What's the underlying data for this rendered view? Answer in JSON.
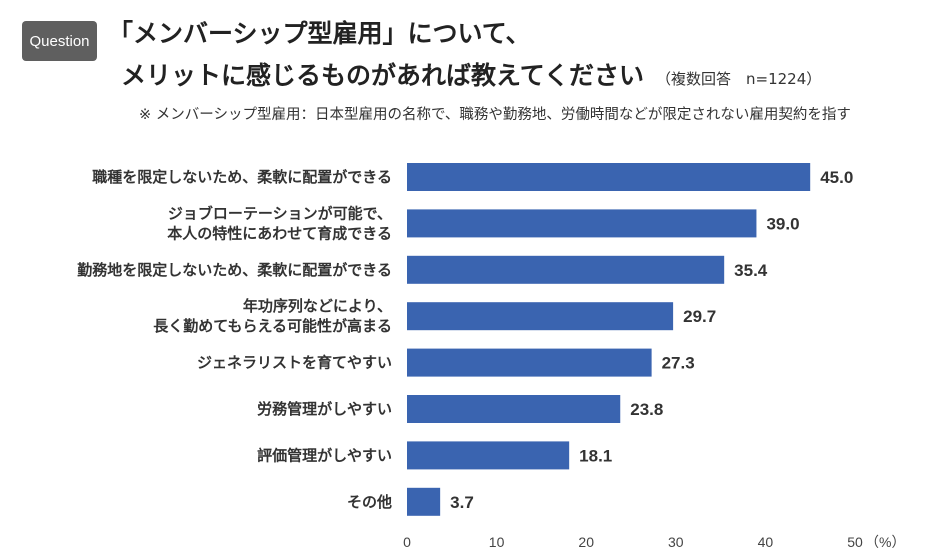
{
  "badge": "Question",
  "title": {
    "line1": "「メンバーシップ型雇用」について、",
    "line2": "メリットに感じるものがあれば教えてください",
    "meta": "（複数回答　n=1224）"
  },
  "note": "※ メンバーシップ型雇用：日本型雇用の名称で、職務や勤務地、労働時間などが限定されない雇用契約を指す",
  "colors": {
    "bar": "#3a64b0"
  },
  "chart_data": {
    "type": "bar",
    "orientation": "horizontal",
    "categories": [
      [
        "職種を限定しないため、柔軟に配置ができる"
      ],
      [
        "ジョブローテーションが可能で、",
        "本人の特性にあわせて育成できる"
      ],
      [
        "勤務地を限定しないため、柔軟に配置ができる"
      ],
      [
        "年功序列などにより、",
        "長く勤めてもらえる可能性が高まる"
      ],
      [
        "ジェネラリストを育てやすい"
      ],
      [
        "労務管理がしやすい"
      ],
      [
        "評価管理がしやすい"
      ],
      [
        "その他"
      ]
    ],
    "values": [
      45.0,
      39.0,
      35.4,
      29.7,
      27.3,
      23.8,
      18.1,
      3.7
    ],
    "value_labels": [
      "45.0",
      "39.0",
      "35.4",
      "29.7",
      "27.3",
      "23.8",
      "18.1",
      "3.7"
    ],
    "xlim": [
      0,
      50
    ],
    "ticks": [
      "0",
      "10",
      "20",
      "30",
      "40",
      "50"
    ],
    "unit": "（%）",
    "grid": false,
    "legend": "none"
  }
}
